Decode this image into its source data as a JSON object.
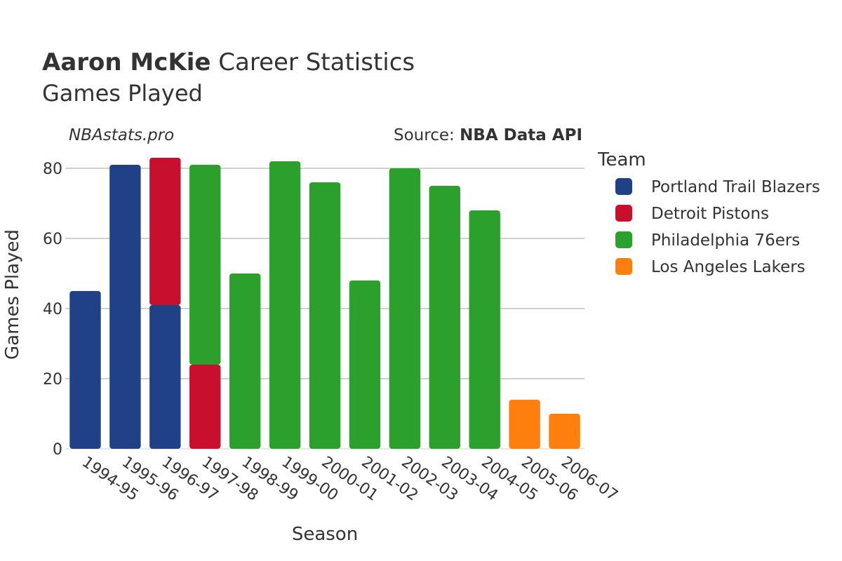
{
  "header": {
    "title_bold": "Aaron McKie",
    "title_rest": " Career Statistics",
    "subtitle": "Games Played",
    "watermark": "NBAstats.pro",
    "source_prefix": "Source: ",
    "source_name": "NBA Data API"
  },
  "legend": {
    "title": "Team",
    "placement": "right"
  },
  "chart_data": {
    "type": "bar",
    "stacked": true,
    "xlabel": "Season",
    "ylabel": "Games Played",
    "ylim": [
      0,
      85
    ],
    "yticks": [
      0,
      20,
      40,
      60,
      80
    ],
    "grid": true,
    "categories": [
      "1994-95",
      "1995-96",
      "1996-97",
      "1997-98",
      "1998-99",
      "1999-00",
      "2000-01",
      "2001-02",
      "2002-03",
      "2003-04",
      "2004-05",
      "2005-06",
      "2006-07"
    ],
    "series": [
      {
        "name": "Portland Trail Blazers",
        "color": "#1f4287",
        "values": [
          45,
          81,
          41,
          0,
          0,
          0,
          0,
          0,
          0,
          0,
          0,
          0,
          0
        ]
      },
      {
        "name": "Detroit Pistons",
        "color": "#c8102e",
        "values": [
          0,
          0,
          42,
          24,
          0,
          0,
          0,
          0,
          0,
          0,
          0,
          0,
          0
        ]
      },
      {
        "name": "Philadelphia 76ers",
        "color": "#2ca02c",
        "values": [
          0,
          0,
          0,
          57,
          50,
          82,
          76,
          48,
          80,
          75,
          68,
          0,
          0
        ]
      },
      {
        "name": "Los Angeles Lakers",
        "color": "#ff7f0e",
        "values": [
          0,
          0,
          0,
          0,
          0,
          0,
          0,
          0,
          0,
          0,
          0,
          14,
          10
        ]
      }
    ]
  }
}
